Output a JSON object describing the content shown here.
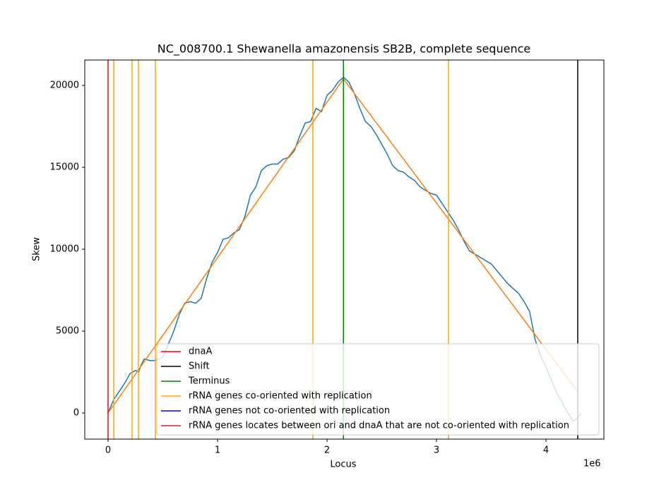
{
  "chart_data": {
    "type": "line",
    "title": "NC_008700.1 Shewanella amazonensis SB2B, complete sequence",
    "xlabel": "Locus",
    "ylabel": "Skew",
    "x_offset_text": "1e6",
    "xlim": [
      -213000,
      4529000
    ],
    "ylim": [
      -1595,
      21552
    ],
    "xticks": [
      {
        "value": 0,
        "label": "0"
      },
      {
        "value": 1000000,
        "label": "1"
      },
      {
        "value": 2000000,
        "label": "2"
      },
      {
        "value": 3000000,
        "label": "3"
      },
      {
        "value": 4000000,
        "label": "4"
      }
    ],
    "yticks": [
      0,
      5000,
      10000,
      15000,
      20000
    ],
    "legend_position": "lower right",
    "series": [
      {
        "color": "#1f77b4",
        "x": [
          0,
          50000,
          100000,
          150000,
          200000,
          250000,
          280000,
          300000,
          330000,
          380000,
          430000,
          500000,
          550000,
          600000,
          650000,
          700000,
          750000,
          800000,
          850000,
          900000,
          950000,
          1000000,
          1050000,
          1100000,
          1150000,
          1200000,
          1250000,
          1300000,
          1350000,
          1400000,
          1450000,
          1500000,
          1550000,
          1600000,
          1650000,
          1700000,
          1750000,
          1800000,
          1850000,
          1900000,
          1950000,
          2000000,
          2050000,
          2100000,
          2150000,
          2200000,
          2250000,
          2300000,
          2350000,
          2400000,
          2450000,
          2500000,
          2550000,
          2600000,
          2650000,
          2700000,
          2750000,
          2800000,
          2850000,
          2900000,
          2950000,
          3000000,
          3050000,
          3100000,
          3150000,
          3200000,
          3250000,
          3300000,
          3350000,
          3400000,
          3450000,
          3500000,
          3550000,
          3600000,
          3650000,
          3700000,
          3750000,
          3800000,
          3850000,
          3900000,
          3950000,
          4000000,
          4050000,
          4100000,
          4150000,
          4200000,
          4250000,
          4290000,
          4320000
        ],
        "values": [
          0,
          800,
          1300,
          1800,
          2400,
          2600,
          2500,
          2900,
          3300,
          3200,
          3200,
          3400,
          4200,
          5000,
          6000,
          6700,
          6800,
          6700,
          7000,
          8200,
          9200,
          9800,
          10600,
          10700,
          11000,
          11200,
          12000,
          13300,
          13800,
          14800,
          15100,
          15200,
          15200,
          15500,
          15600,
          16000,
          16900,
          17700,
          17800,
          18600,
          18400,
          19400,
          19700,
          20200,
          20500,
          20200,
          19500,
          18600,
          17800,
          17500,
          17000,
          16400,
          15800,
          15100,
          14800,
          14700,
          14400,
          14200,
          13800,
          13600,
          13400,
          13300,
          12800,
          12300,
          11800,
          11200,
          10500,
          9900,
          9700,
          9500,
          9300,
          9100,
          8700,
          8300,
          7900,
          7600,
          7300,
          6800,
          6200,
          4500,
          3500,
          2800,
          2000,
          1200,
          600,
          0,
          -500,
          -300,
          0
        ]
      },
      {
        "color": "#ff7f0e",
        "x": [
          0,
          2150000,
          4290000
        ],
        "values": [
          0,
          20400,
          1300
        ]
      }
    ],
    "markers": [
      {
        "name": "dnaA",
        "color": "#ff0000",
        "x": [
          0
        ]
      },
      {
        "name": "Shift",
        "color": "#000000",
        "x": [
          4290000
        ]
      },
      {
        "name": "Terminus",
        "color": "#008000",
        "x": [
          2150000
        ]
      },
      {
        "name": "rRNA genes co-oriented with replication",
        "color": "#ffa500",
        "x": [
          52000,
          219000,
          277000,
          432000,
          1871000,
          3110000
        ]
      },
      {
        "name": "rRNA genes not co-oriented with replication",
        "color": "#0000ff",
        "x": []
      },
      {
        "name": "rRNA genes locates between ori and dnaA that are not co-oriented with replication",
        "color": "#d62728",
        "x": []
      }
    ]
  }
}
